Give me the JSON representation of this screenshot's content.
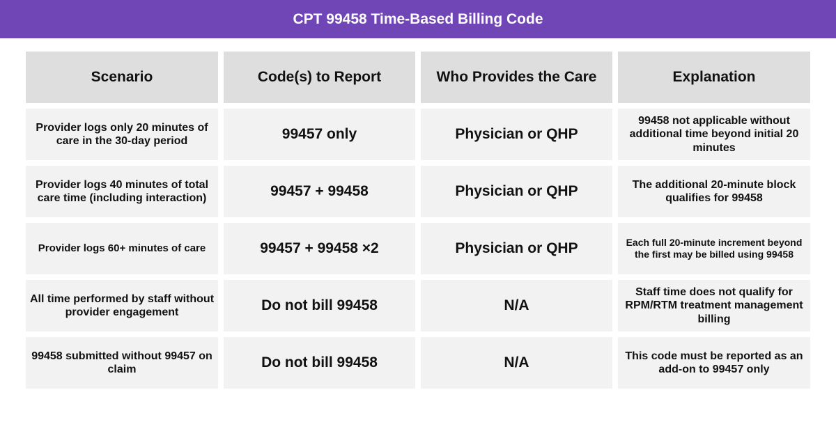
{
  "title": "CPT 99458 Time-Based Billing Code",
  "headers": [
    "Scenario",
    "Code(s) to Report",
    "Who Provides the Care",
    "Explanation"
  ],
  "rows": [
    {
      "scenario": "Provider logs only 20 minutes of care in the 30-day period",
      "codes": "99457 only",
      "who": "Physician or QHP",
      "explanation": "99458 not applicable without additional time beyond initial 20 minutes"
    },
    {
      "scenario": "Provider logs 40 minutes of total care time (including interaction)",
      "codes": "99457 + 99458",
      "who": "Physician or QHP",
      "explanation": "The additional 20-minute block qualifies for 99458"
    },
    {
      "scenario": "Provider logs 60+ minutes of care",
      "codes": "99457 + 99458 ×2",
      "who": "Physician or QHP",
      "explanation": "Each full 20-minute increment beyond the first may be billed using 99458"
    },
    {
      "scenario": "All time performed by staff without provider engagement",
      "codes": "Do not bill 99458",
      "who": "N/A",
      "explanation": "Staff time does not qualify for RPM/RTM treatment management billing"
    },
    {
      "scenario": "99458 submitted without 99457 on claim",
      "codes": "Do not bill 99458",
      "who": "N/A",
      "explanation": "This code must be reported as an add-on to 99457 only"
    }
  ],
  "colors": {
    "title_bar": "#7045b5",
    "header_cell": "#dedede",
    "body_cell": "#f2f2f2"
  }
}
